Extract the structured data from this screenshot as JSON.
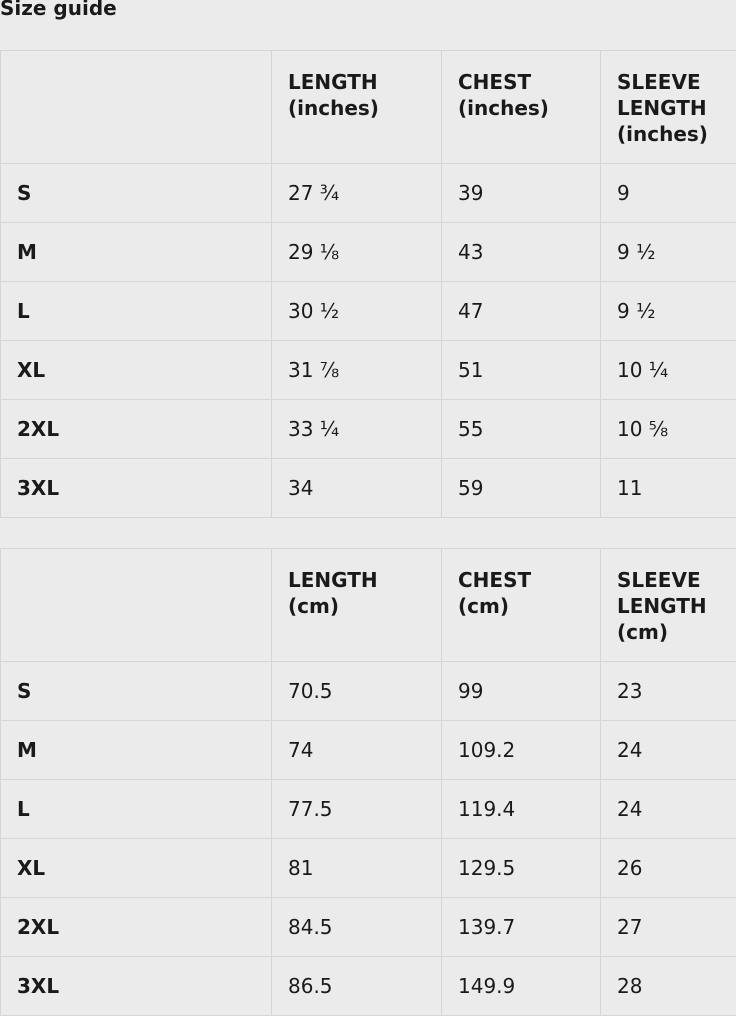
{
  "title": "Size guide",
  "tables": [
    {
      "headers": [
        "",
        "LENGTH\n(inches)",
        "CHEST\n(inches)",
        "SLEEVE\nLENGTH\n(inches)"
      ],
      "rows": [
        [
          "S",
          "27 ¾",
          "39",
          "9"
        ],
        [
          "M",
          "29 ⅛",
          "43",
          "9 ½"
        ],
        [
          "L",
          "30 ½",
          "47",
          "9 ½"
        ],
        [
          "XL",
          "31 ⅞",
          "51",
          "10 ¼"
        ],
        [
          "2XL",
          "33 ¼",
          "55",
          "10 ⅝"
        ],
        [
          "3XL",
          "34",
          "59",
          "11"
        ]
      ]
    },
    {
      "headers": [
        "",
        "LENGTH\n(cm)",
        "CHEST\n(cm)",
        "SLEEVE\nLENGTH\n(cm)"
      ],
      "rows": [
        [
          "S",
          "70.5",
          "99",
          "23"
        ],
        [
          "M",
          "74",
          "109.2",
          "24"
        ],
        [
          "L",
          "77.5",
          "119.4",
          "24"
        ],
        [
          "XL",
          "81",
          "129.5",
          "26"
        ],
        [
          "2XL",
          "84.5",
          "139.7",
          "27"
        ],
        [
          "3XL",
          "86.5",
          "149.9",
          "28"
        ]
      ]
    }
  ]
}
